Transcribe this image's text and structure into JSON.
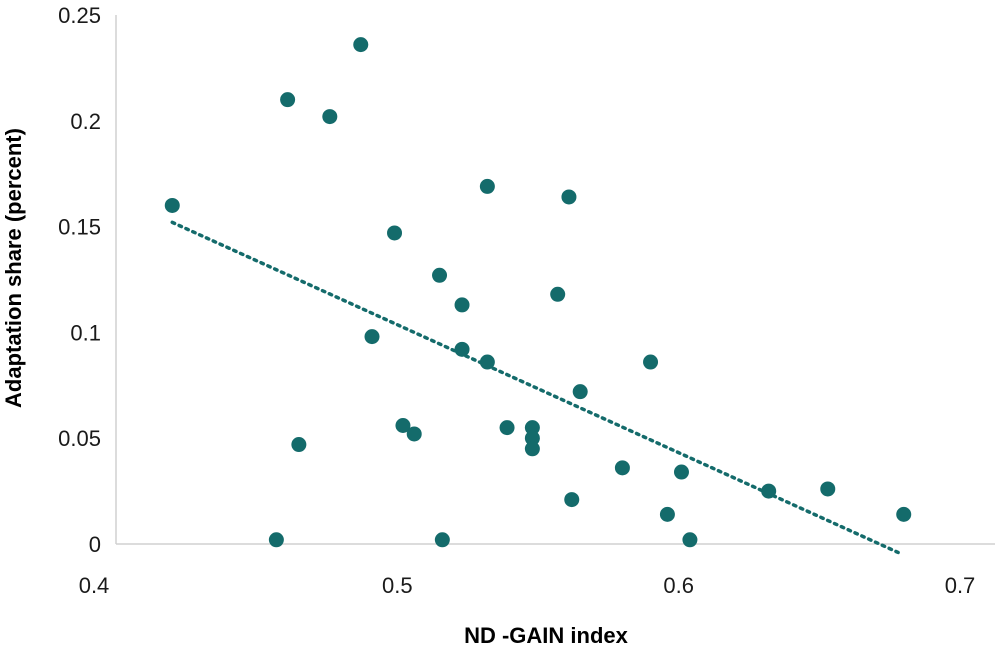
{
  "colors": {
    "point": "#146b6b",
    "trendline": "#146b6b",
    "axis": "#d0d0d0"
  },
  "chart_data": {
    "type": "scatter",
    "title": "",
    "xlabel": "ND -GAIN index",
    "ylabel": "Adaptation share (percent)",
    "xlim": [
      0.4,
      0.7
    ],
    "ylim": [
      0,
      0.25
    ],
    "x_ticks": [
      "0.4",
      "0.5",
      "0.6",
      "0.7"
    ],
    "y_ticks": [
      "0",
      "0.05",
      "0.1",
      "0.15",
      "0.2",
      "0.25"
    ],
    "grid": false,
    "trendline": {
      "style": "dotted",
      "x": [
        0.42,
        0.678
      ],
      "y": [
        0.152,
        -0.004
      ]
    },
    "points": [
      {
        "x": 0.42,
        "y": 0.16
      },
      {
        "x": 0.457,
        "y": 0.002
      },
      {
        "x": 0.461,
        "y": 0.21
      },
      {
        "x": 0.465,
        "y": 0.047
      },
      {
        "x": 0.476,
        "y": 0.202
      },
      {
        "x": 0.487,
        "y": 0.236
      },
      {
        "x": 0.491,
        "y": 0.098
      },
      {
        "x": 0.499,
        "y": 0.147
      },
      {
        "x": 0.502,
        "y": 0.056
      },
      {
        "x": 0.506,
        "y": 0.052
      },
      {
        "x": 0.515,
        "y": 0.127
      },
      {
        "x": 0.516,
        "y": 0.002
      },
      {
        "x": 0.523,
        "y": 0.113
      },
      {
        "x": 0.523,
        "y": 0.092
      },
      {
        "x": 0.532,
        "y": 0.169
      },
      {
        "x": 0.532,
        "y": 0.086
      },
      {
        "x": 0.539,
        "y": 0.055
      },
      {
        "x": 0.548,
        "y": 0.055
      },
      {
        "x": 0.548,
        "y": 0.05
      },
      {
        "x": 0.548,
        "y": 0.045
      },
      {
        "x": 0.557,
        "y": 0.118
      },
      {
        "x": 0.561,
        "y": 0.164
      },
      {
        "x": 0.562,
        "y": 0.021
      },
      {
        "x": 0.565,
        "y": 0.072
      },
      {
        "x": 0.58,
        "y": 0.036
      },
      {
        "x": 0.59,
        "y": 0.086
      },
      {
        "x": 0.596,
        "y": 0.014
      },
      {
        "x": 0.601,
        "y": 0.034
      },
      {
        "x": 0.604,
        "y": 0.002
      },
      {
        "x": 0.632,
        "y": 0.025
      },
      {
        "x": 0.653,
        "y": 0.026
      },
      {
        "x": 0.68,
        "y": 0.014
      }
    ]
  }
}
